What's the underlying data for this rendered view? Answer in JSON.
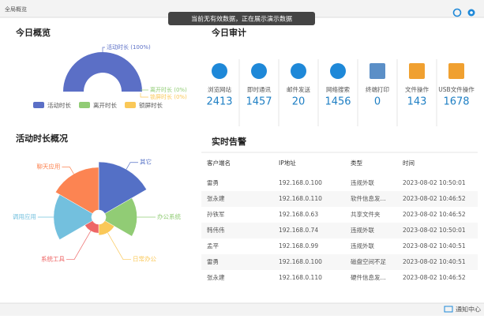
{
  "header": {
    "title": "全局概览"
  },
  "toast": "当前无有效数据，正在展示演示数据",
  "today_overview": {
    "title": "今日概览",
    "chart": {
      "type": "pie",
      "categories": [
        "活动时长",
        "离开时长",
        "锁屏时长"
      ],
      "values": [
        100,
        0,
        0
      ],
      "value_labels": [
        "活动时长 (100%)",
        "离开时长 (0%)",
        "锁屏时长 (0%)"
      ],
      "colors": [
        "#5b6fc6",
        "#91cc75",
        "#fac858"
      ]
    }
  },
  "activity_overview": {
    "title": "活动时长概况",
    "chart": {
      "type": "rose",
      "categories": [
        "其它",
        "办公系统",
        "日常办公",
        "系统工具",
        "调用应用",
        "聊天应用"
      ],
      "values": [
        70,
        45,
        15,
        12,
        55,
        62
      ],
      "colors": [
        "#5470c6",
        "#91cc75",
        "#fac858",
        "#ee6666",
        "#73c0de",
        "#fc8452"
      ]
    }
  },
  "audit": {
    "title": "今日审计",
    "items": [
      {
        "label": "浏览网站",
        "value": 2413
      },
      {
        "label": "即时通讯",
        "value": 1457
      },
      {
        "label": "邮件发送",
        "value": 20
      },
      {
        "label": "网络搜索",
        "value": 1456
      },
      {
        "label": "终端打印",
        "value": 0
      },
      {
        "label": "文件操作",
        "value": 143
      },
      {
        "label": "USB文件操作",
        "value": 1678
      }
    ]
  },
  "alerts": {
    "title": "实时告警",
    "columns": [
      "客户端名",
      "IP地址",
      "类型",
      "时间"
    ],
    "rows": [
      [
        "雷勇",
        "192.168.0.100",
        "违规外联",
        "2023-08-02 10:50:01"
      ],
      [
        "张永建",
        "192.168.0.110",
        "软件信息发...",
        "2023-08-02 10:46:52"
      ],
      [
        "孙铁军",
        "192.168.0.63",
        "共享文件夹",
        "2023-08-02 10:46:52"
      ],
      [
        "韩伟伟",
        "192.168.0.74",
        "违规外联",
        "2023-08-02 10:50:01"
      ],
      [
        "孟平",
        "192.168.0.99",
        "违规外联",
        "2023-08-02 10:40:51"
      ],
      [
        "雷勇",
        "192.168.0.100",
        "磁盘空间不足",
        "2023-08-02 10:40:51"
      ],
      [
        "张永建",
        "192.168.0.110",
        "硬件信息发...",
        "2023-08-02 10:46:52"
      ]
    ]
  },
  "footer": {
    "label": "通知中心"
  }
}
